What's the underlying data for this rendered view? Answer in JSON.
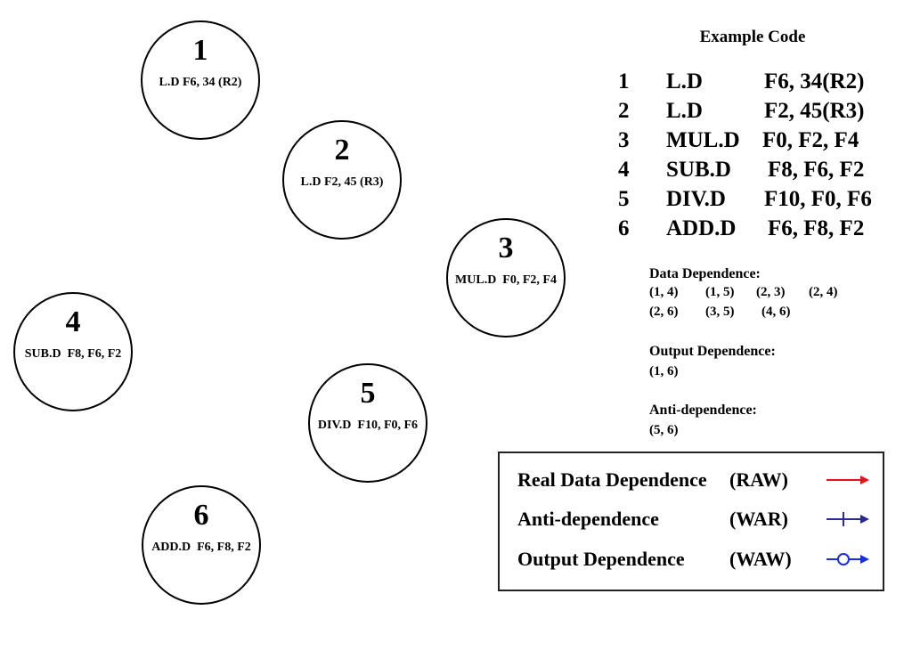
{
  "nodes": [
    {
      "id": "1",
      "instr": "L.D F6, 34 (R2)"
    },
    {
      "id": "2",
      "instr": "L.D F2, 45 (R3)"
    },
    {
      "id": "3",
      "instr": "MUL.D  F0, F2, F4"
    },
    {
      "id": "4",
      "instr": "SUB.D  F8, F6, F2"
    },
    {
      "id": "5",
      "instr": "DIV.D  F10, F0, F6"
    },
    {
      "id": "6",
      "instr": "ADD.D  F6, F8, F2"
    }
  ],
  "code": {
    "title": "Example Code",
    "rows": [
      {
        "num": "1",
        "op": "L.D",
        "args": "F6, 34(R2)"
      },
      {
        "num": "2",
        "op": "L.D",
        "args": "F2, 45(R3)"
      },
      {
        "num": "3",
        "op": "MUL.D",
        "args": "F0, F2, F4"
      },
      {
        "num": "4",
        "op": "SUB.D",
        "args": "F8, F6, F2"
      },
      {
        "num": "5",
        "op": "DIV.D",
        "args": "F10, F0, F6"
      },
      {
        "num": "6",
        "op": "ADD.D",
        "args": "F6, F8, F2"
      }
    ]
  },
  "dependences": {
    "data": {
      "heading": "Data Dependence:",
      "pairs": [
        "(1, 4)",
        "(1, 5)",
        "(2, 3)",
        "(2, 4)",
        "(2, 6)",
        "(3, 5)",
        "(4, 6)"
      ]
    },
    "output": {
      "heading": "Output Dependence:",
      "pairs": [
        "(1, 6)"
      ]
    },
    "anti": {
      "heading": "Anti-dependence:",
      "pairs": [
        "(5, 6)"
      ]
    }
  },
  "legend": {
    "rows": [
      {
        "label": "Real Data Dependence",
        "abbr": "(RAW)",
        "arrow": "plain-arrow",
        "color": "#e0141e"
      },
      {
        "label": "Anti-dependence",
        "abbr": "(WAR)",
        "arrow": "crossbar-arrow",
        "color": "#2a2a8c"
      },
      {
        "label": "Output Dependence",
        "abbr": "(WAW)",
        "arrow": "circle-arrow",
        "color": "#1a2ee0"
      }
    ]
  }
}
